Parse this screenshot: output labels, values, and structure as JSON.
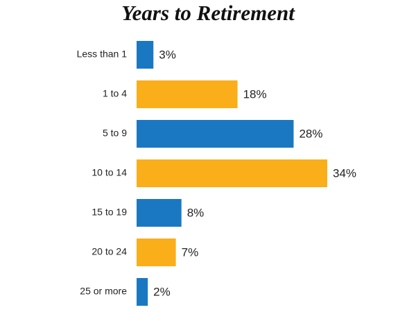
{
  "chart_data": {
    "type": "bar",
    "orientation": "horizontal",
    "title": "Years to Retirement",
    "categories": [
      "Less than 1",
      "1 to 4",
      "5 to 9",
      "10 to 14",
      "15 to 19",
      "20 to 24",
      "25 or more"
    ],
    "values": [
      3,
      18,
      28,
      34,
      8,
      7,
      2
    ],
    "value_labels": [
      "3%",
      "18%",
      "28%",
      "34%",
      "8%",
      "7%",
      "2%"
    ],
    "colors": [
      "#1a78c2",
      "#f9ae1a",
      "#1a78c2",
      "#f9ae1a",
      "#1a78c2",
      "#f9ae1a",
      "#1a78c2"
    ]
  }
}
